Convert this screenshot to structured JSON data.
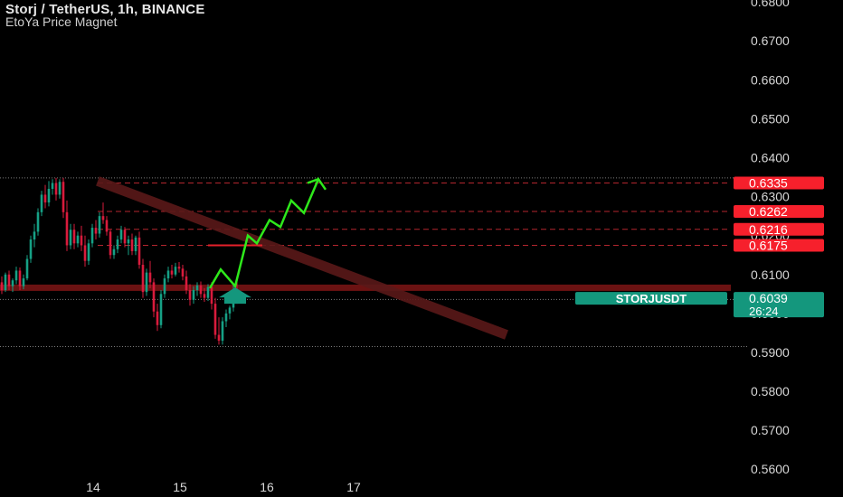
{
  "header": {
    "title": "Storj / TetherUS, 1h, BINANCE",
    "indicator": "EtoYa Price Magnet"
  },
  "colors": {
    "background": "#000000",
    "up_candle": "#16a085",
    "down_candle": "#d81b3c",
    "level_tag": "#f6202c",
    "current_tag": "#14977d",
    "support_zone": "#6b1212",
    "trendline": "#5a1919",
    "projection": "#2ee81b",
    "arrow": "#14977d"
  },
  "chart_data": {
    "type": "candlestick",
    "ylim": [
      0.5575,
      0.6805
    ],
    "y_ticks": [
      "0.5600",
      "0.5700",
      "0.5800",
      "0.5900",
      "0.6000",
      "0.6100",
      "0.6200",
      "0.6300",
      "0.6400",
      "0.6500",
      "0.6600",
      "0.6700",
      "0.6800"
    ],
    "x_ticks": [
      {
        "label": "14",
        "t": 20
      },
      {
        "label": "15",
        "t": 44
      },
      {
        "label": "16",
        "t": 68
      },
      {
        "label": "17",
        "t": 92
      }
    ],
    "price_levels": [
      {
        "label": "0.6335",
        "value": 0.6335
      },
      {
        "label": "0.6262",
        "value": 0.6262
      },
      {
        "label": "0.6216",
        "value": 0.6216
      },
      {
        "label": "0.6175",
        "value": 0.6175
      }
    ],
    "current_price": {
      "symbol": "STORJUSDT",
      "label": "0.6039",
      "value": 0.6039,
      "countdown": "26:24"
    },
    "dotted_levels": [
      0.6348,
      0.6036,
      0.5915
    ],
    "support_zone": {
      "value": 0.6066
    },
    "red_segment": {
      "value": 0.6175,
      "t_start": 57,
      "t_end": 72
    },
    "trendline": [
      {
        "t": 14,
        "v": 0.634
      },
      {
        "t": 69,
        "v": 0.5945
      }
    ],
    "projection_path": [
      {
        "t": 57.5,
        "v": 0.6065
      },
      {
        "t": 60.5,
        "v": 0.6113
      },
      {
        "t": 64.5,
        "v": 0.607
      },
      {
        "t": 68,
        "v": 0.62
      },
      {
        "t": 70.5,
        "v": 0.618
      },
      {
        "t": 74,
        "v": 0.624
      },
      {
        "t": 77,
        "v": 0.6222
      },
      {
        "t": 80,
        "v": 0.629
      },
      {
        "t": 83.5,
        "v": 0.6258
      },
      {
        "t": 87.5,
        "v": 0.6345
      },
      {
        "t": 89.5,
        "v": 0.6318
      }
    ],
    "projection_cap": [
      {
        "t": 84.5,
        "v": 0.6335
      },
      {
        "t": 87.5,
        "v": 0.6345
      }
    ],
    "arrow": {
      "t": 64.5,
      "v": 0.6055
    },
    "candles": [
      [
        0.608,
        0.6095,
        0.605,
        0.606
      ],
      [
        0.606,
        0.6105,
        0.6055,
        0.61
      ],
      [
        0.61,
        0.611,
        0.606,
        0.607
      ],
      [
        0.607,
        0.609,
        0.6055,
        0.6085
      ],
      [
        0.6085,
        0.612,
        0.6075,
        0.611
      ],
      [
        0.611,
        0.6118,
        0.606,
        0.607
      ],
      [
        0.607,
        0.61,
        0.6062,
        0.609
      ],
      [
        0.609,
        0.615,
        0.6085,
        0.614
      ],
      [
        0.614,
        0.62,
        0.613,
        0.619
      ],
      [
        0.619,
        0.623,
        0.617,
        0.621
      ],
      [
        0.621,
        0.627,
        0.62,
        0.626
      ],
      [
        0.626,
        0.6315,
        0.625,
        0.6305
      ],
      [
        0.6305,
        0.633,
        0.627,
        0.6285
      ],
      [
        0.6285,
        0.634,
        0.6275,
        0.632
      ],
      [
        0.632,
        0.6345,
        0.6305,
        0.6335
      ],
      [
        0.6335,
        0.6348,
        0.629,
        0.6305
      ],
      [
        0.6305,
        0.6345,
        0.6295,
        0.6338
      ],
      [
        0.6338,
        0.6348,
        0.6245,
        0.626
      ],
      [
        0.626,
        0.629,
        0.616,
        0.6175
      ],
      [
        0.6175,
        0.623,
        0.6165,
        0.6215
      ],
      [
        0.6215,
        0.623,
        0.6165,
        0.618
      ],
      [
        0.618,
        0.621,
        0.617,
        0.62
      ],
      [
        0.62,
        0.6225,
        0.616,
        0.6175
      ],
      [
        0.6175,
        0.62,
        0.612,
        0.6135
      ],
      [
        0.6135,
        0.619,
        0.6125,
        0.618
      ],
      [
        0.618,
        0.623,
        0.617,
        0.622
      ],
      [
        0.622,
        0.624,
        0.619,
        0.6205
      ],
      [
        0.6205,
        0.626,
        0.6195,
        0.625
      ],
      [
        0.625,
        0.6285,
        0.623,
        0.624
      ],
      [
        0.624,
        0.625,
        0.62,
        0.621
      ],
      [
        0.621,
        0.6215,
        0.614,
        0.615
      ],
      [
        0.615,
        0.6175,
        0.614,
        0.6165
      ],
      [
        0.6165,
        0.62,
        0.6155,
        0.619
      ],
      [
        0.619,
        0.6225,
        0.618,
        0.6215
      ],
      [
        0.6215,
        0.6222,
        0.617,
        0.618
      ],
      [
        0.618,
        0.62,
        0.615,
        0.619
      ],
      [
        0.619,
        0.6205,
        0.615,
        0.616
      ],
      [
        0.616,
        0.62,
        0.615,
        0.6195
      ],
      [
        0.6195,
        0.621,
        0.6115,
        0.6125
      ],
      [
        0.6125,
        0.614,
        0.604,
        0.6055
      ],
      [
        0.6055,
        0.6115,
        0.6045,
        0.6105
      ],
      [
        0.6105,
        0.6135,
        0.6065,
        0.608
      ],
      [
        0.608,
        0.609,
        0.599,
        0.6005
      ],
      [
        0.6005,
        0.6025,
        0.5955,
        0.597
      ],
      [
        0.597,
        0.606,
        0.5962,
        0.605
      ],
      [
        0.605,
        0.61,
        0.604,
        0.609
      ],
      [
        0.609,
        0.612,
        0.608,
        0.611
      ],
      [
        0.611,
        0.6125,
        0.609,
        0.61
      ],
      [
        0.61,
        0.613,
        0.6095,
        0.612
      ],
      [
        0.612,
        0.6132,
        0.6105,
        0.6115
      ],
      [
        0.6115,
        0.6125,
        0.6085,
        0.6095
      ],
      [
        0.6095,
        0.611,
        0.605,
        0.606
      ],
      [
        0.606,
        0.6075,
        0.602,
        0.6035
      ],
      [
        0.6035,
        0.607,
        0.6025,
        0.606
      ],
      [
        0.606,
        0.608,
        0.6045,
        0.6072
      ],
      [
        0.6072,
        0.6082,
        0.604,
        0.605
      ],
      [
        0.605,
        0.6065,
        0.603,
        0.604
      ],
      [
        0.604,
        0.6075,
        0.6032,
        0.6068
      ],
      [
        0.6068,
        0.608,
        0.601,
        0.6025
      ],
      [
        0.6025,
        0.604,
        0.5935,
        0.5945
      ],
      [
        0.5945,
        0.599,
        0.592,
        0.593
      ],
      [
        0.593,
        0.599,
        0.592,
        0.598
      ],
      [
        0.598,
        0.601,
        0.5965,
        0.6
      ],
      [
        0.6,
        0.602,
        0.5985,
        0.6015
      ],
      [
        0.6015,
        0.6075,
        0.6005,
        0.606
      ],
      [
        0.606,
        0.6085,
        0.6025,
        0.6039
      ]
    ]
  }
}
